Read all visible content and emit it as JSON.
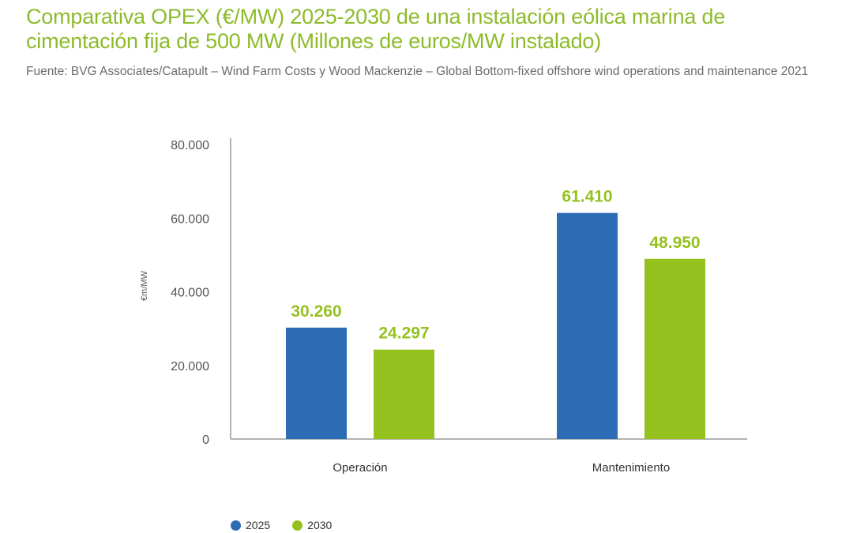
{
  "title": "Comparativa OPEX (€/MW) 2025-2030 de una instalación eólica marina de cimentación fija de 500 MW (Millones de euros/MW instalado)",
  "source": "Fuente: BVG Associates/Catapult – Wind Farm Costs y Wood Mackenzie – Global Bottom-fixed offshore wind operations and maintenance 2021",
  "chart_data": {
    "type": "bar",
    "categories": [
      "Operación",
      "Mantenimiento"
    ],
    "series": [
      {
        "name": "2025",
        "values": [
          30260,
          61410
        ],
        "labels": [
          "30.260",
          "61.410"
        ],
        "color": "#2b6cb5"
      },
      {
        "name": "2030",
        "values": [
          24297,
          48950
        ],
        "labels": [
          "24.297",
          "48.950"
        ],
        "color": "#95c11f"
      }
    ],
    "ylabel": "€m/MW",
    "xlabel": "",
    "ylim": [
      0,
      80000
    ],
    "yticks": [
      0,
      20000,
      40000,
      60000,
      80000
    ],
    "ytick_labels": [
      "0",
      "20.000",
      "40.000",
      "60.000",
      "80.000"
    ],
    "data_label_color": "#95c11f",
    "axis_color": "#9a9a9a",
    "grid": false,
    "legend_position": "bottom-left"
  }
}
